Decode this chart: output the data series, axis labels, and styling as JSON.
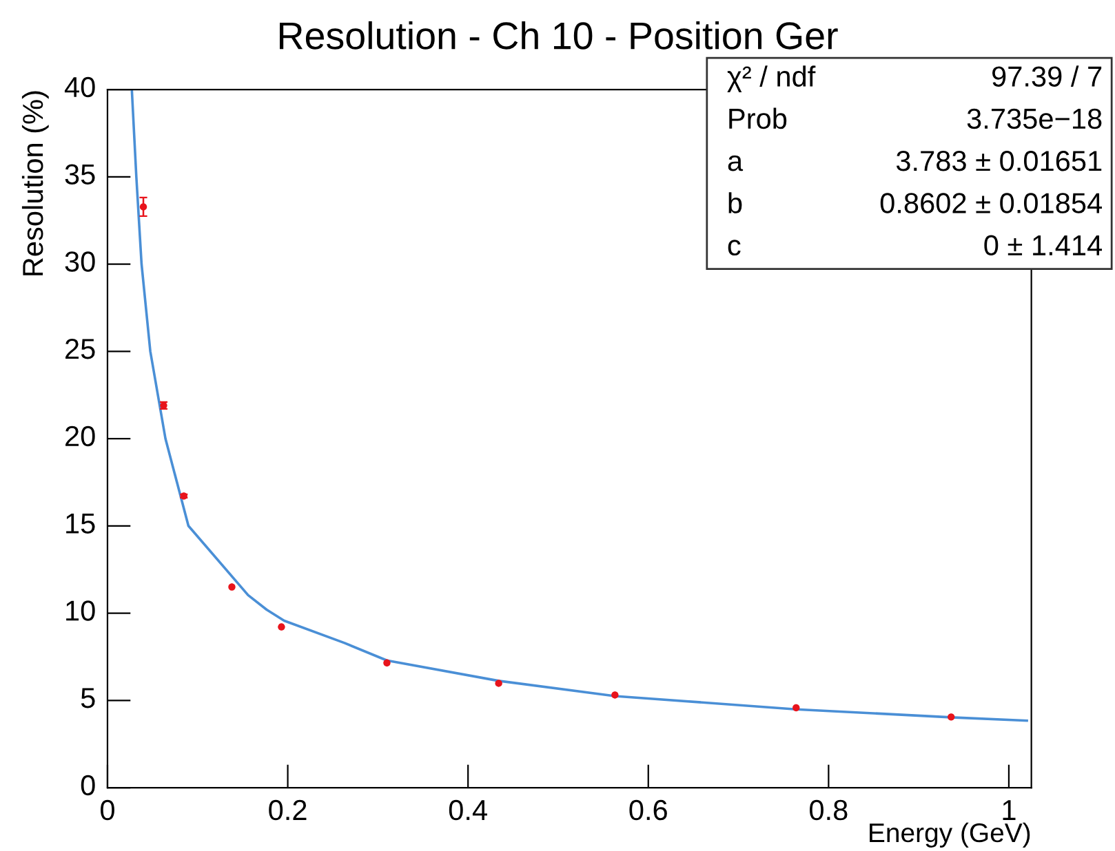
{
  "chart_data": {
    "type": "scatter",
    "title": "Resolution - Ch 10 - Position Ger",
    "xlabel": "Energy (GeV)",
    "ylabel": "Resolution (%)",
    "xlim": [
      0,
      1.025
    ],
    "xticks": [
      0,
      0.2,
      0.4,
      0.6,
      0.8,
      1
    ],
    "ylim": [
      0,
      40
    ],
    "yticks": [
      0,
      5,
      10,
      15,
      20,
      25,
      30,
      35,
      40
    ],
    "grid": false,
    "series": [
      {
        "marker": "circle",
        "color": "#e8141c",
        "x": [
          0.0398,
          0.0623,
          0.0847,
          0.138,
          0.193,
          0.31,
          0.434,
          0.563,
          0.764,
          0.936
        ],
        "values": [
          33.28,
          21.9,
          16.71,
          11.5,
          9.21,
          7.15,
          5.98,
          5.31,
          4.58,
          4.05
        ],
        "errors": [
          0.53,
          0.2,
          0.1,
          null,
          null,
          null,
          null,
          null,
          null,
          null
        ]
      },
      {
        "type": "line",
        "color": "#4a8fd6",
        "x": [
          0.027,
          0.032,
          0.0378,
          0.0475,
          0.0643,
          0.0898,
          0.156,
          0.1766,
          0.196,
          0.263,
          0.31,
          0.434,
          0.563,
          0.764,
          0.936,
          1.02
        ],
        "values": [
          40,
          35,
          30,
          25,
          20,
          15,
          11.03,
          10.2,
          9.57,
          8.29,
          7.29,
          6.12,
          5.25,
          4.49,
          4.03,
          3.84
        ]
      }
    ],
    "annotations": [
      "χ² / ndf",
      "97.39 / 7",
      "Prob",
      "3.735e−18",
      "a",
      "3.783 ± 0.01651",
      "b",
      "0.8602 ± 0.01854",
      "c",
      "0 ± 1.414"
    ]
  }
}
